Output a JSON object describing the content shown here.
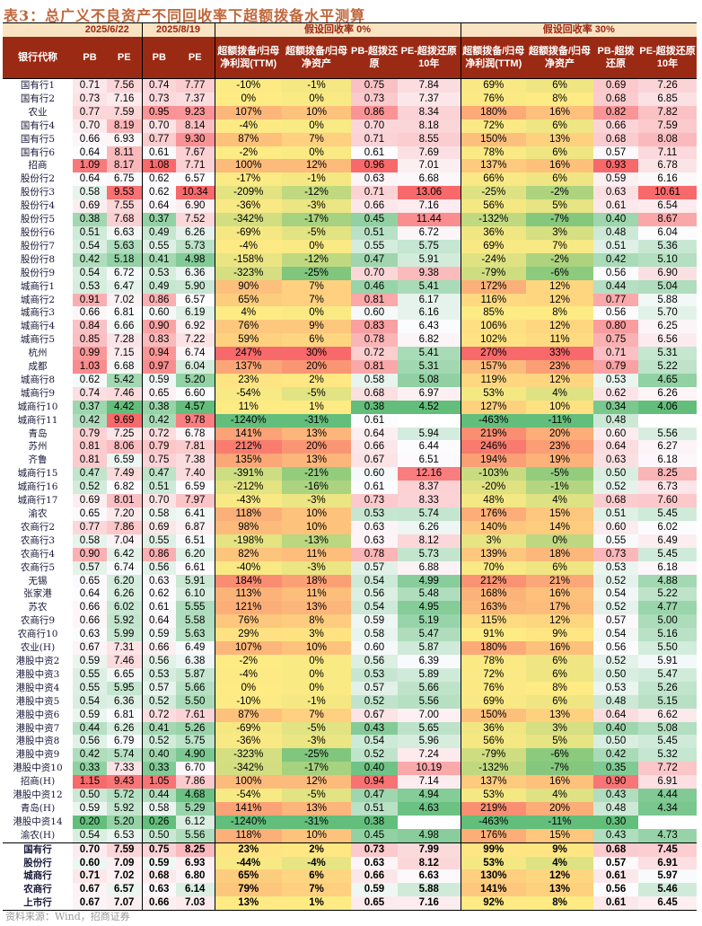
{
  "title": "表3：总广义不良资产不同回收率下超额拨备水平测算",
  "header_groups": [
    "",
    "2025/6/22",
    "2025/8/19",
    "假设回收率 0%",
    "假设回收率 30%"
  ],
  "columns": [
    "银行代称",
    "PB",
    "PE",
    "PB",
    "PE",
    "超额拨备/归母净利润(TTM)",
    "超额拨备/归母净资产",
    "PB-超拨还原",
    "PE-超拨还原10年",
    "超额拨备/归母净利润(TTM)",
    "超额拨备/归母净资产",
    "PB-超拨还原",
    "PE-超拨还原10年"
  ],
  "scale_colors": {
    "low": "#63BE7B",
    "mid_value": "#FCFCFF",
    "mid_pct": "#FFEB84",
    "high": "#F8696B"
  },
  "rows": [
    [
      "国有行1",
      "0.71",
      "7.56",
      "0.74",
      "7.77",
      "-10%",
      "-1%",
      "0.75",
      "7.84",
      "69%",
      "6%",
      "0.69",
      "7.26"
    ],
    [
      "国有行2",
      "0.73",
      "7.16",
      "0.73",
      "7.37",
      "0%",
      "0%",
      "0.73",
      "7.37",
      "76%",
      "8%",
      "0.68",
      "6.85"
    ],
    [
      "农业",
      "0.77",
      "7.59",
      "0.95",
      "9.23",
      "107%",
      "10%",
      "0.86",
      "8.34",
      "180%",
      "16%",
      "0.82",
      "7.82"
    ],
    [
      "国有行4",
      "0.70",
      "8.19",
      "0.70",
      "8.14",
      "-4%",
      "0%",
      "0.70",
      "8.18",
      "72%",
      "6%",
      "0.66",
      "7.59"
    ],
    [
      "国有行5",
      "0.66",
      "6.93",
      "0.77",
      "9.30",
      "87%",
      "7%",
      "0.71",
      "8.55",
      "150%",
      "13%",
      "0.68",
      "8.08"
    ],
    [
      "国有行6",
      "0.64",
      "8.11",
      "0.61",
      "7.67",
      "-2%",
      "0%",
      "0.61",
      "7.69",
      "78%",
      "6%",
      "0.57",
      "7.11"
    ],
    [
      "招商",
      "1.09",
      "8.17",
      "1.08",
      "7.71",
      "100%",
      "12%",
      "0.96",
      "7.01",
      "137%",
      "16%",
      "0.93",
      "6.78"
    ],
    [
      "股份行2",
      "0.64",
      "6.75",
      "0.62",
      "6.57",
      "-17%",
      "-1%",
      "0.63",
      "6.68",
      "66%",
      "6%",
      "0.59",
      "6.16"
    ],
    [
      "股份行3",
      "0.58",
      "9.53",
      "0.62",
      "10.34",
      "-209%",
      "-12%",
      "0.71",
      "13.06",
      "-25%",
      "-2%",
      "0.63",
      "10.61"
    ],
    [
      "股份行4",
      "0.69",
      "7.55",
      "0.64",
      "6.90",
      "-36%",
      "-3%",
      "0.66",
      "7.16",
      "56%",
      "5%",
      "0.61",
      "6.54"
    ],
    [
      "股份行5",
      "0.38",
      "7.68",
      "0.37",
      "7.52",
      "-342%",
      "-17%",
      "0.45",
      "11.44",
      "-132%",
      "-7%",
      "0.40",
      "8.67"
    ],
    [
      "股份行6",
      "0.51",
      "6.63",
      "0.49",
      "6.26",
      "-69%",
      "-5%",
      "0.51",
      "6.72",
      "36%",
      "3%",
      "0.48",
      "6.04"
    ],
    [
      "股份行7",
      "0.54",
      "5.63",
      "0.55",
      "5.73",
      "-4%",
      "0%",
      "0.55",
      "5.75",
      "69%",
      "7%",
      "0.51",
      "5.36"
    ],
    [
      "股份行8",
      "0.42",
      "5.18",
      "0.41",
      "4.98",
      "-158%",
      "-12%",
      "0.47",
      "5.91",
      "-24%",
      "-2%",
      "0.42",
      "5.10"
    ],
    [
      "股份行9",
      "0.54",
      "6.72",
      "0.53",
      "6.36",
      "-323%",
      "-25%",
      "0.70",
      "9.38",
      "-79%",
      "-6%",
      "0.56",
      "6.90"
    ],
    [
      "城商行1",
      "0.53",
      "6.47",
      "0.49",
      "5.90",
      "90%",
      "7%",
      "0.46",
      "5.41",
      "172%",
      "12%",
      "0.44",
      "5.04"
    ],
    [
      "城商行2",
      "0.91",
      "7.02",
      "0.86",
      "6.57",
      "65%",
      "7%",
      "0.81",
      "6.17",
      "116%",
      "12%",
      "0.77",
      "5.88"
    ],
    [
      "城商行3",
      "0.66",
      "6.81",
      "0.60",
      "6.19",
      "4%",
      "0%",
      "0.60",
      "6.16",
      "85%",
      "8%",
      "0.56",
      "5.70"
    ],
    [
      "城商行4",
      "0.84",
      "6.66",
      "0.90",
      "6.92",
      "76%",
      "9%",
      "0.83",
      "6.43",
      "106%",
      "12%",
      "0.80",
      "6.25"
    ],
    [
      "城商行5",
      "0.85",
      "7.28",
      "0.83",
      "7.22",
      "59%",
      "6%",
      "0.78",
      "6.82",
      "102%",
      "11%",
      "0.75",
      "6.56"
    ],
    [
      "杭州",
      "0.99",
      "7.15",
      "0.94",
      "6.74",
      "247%",
      "30%",
      "0.72",
      "5.41",
      "270%",
      "33%",
      "0.71",
      "5.31"
    ],
    [
      "成都",
      "1.03",
      "6.68",
      "0.97",
      "6.04",
      "137%",
      "20%",
      "0.81",
      "5.31",
      "157%",
      "23%",
      "0.79",
      "5.22"
    ],
    [
      "城商行8",
      "0.62",
      "5.42",
      "0.59",
      "5.20",
      "23%",
      "2%",
      "0.58",
      "5.08",
      "119%",
      "12%",
      "0.53",
      "4.65"
    ],
    [
      "城商行9",
      "0.74",
      "7.46",
      "0.65",
      "6.60",
      "-54%",
      "-5%",
      "0.68",
      "6.97",
      "53%",
      "4%",
      "0.62",
      "6.26"
    ],
    [
      "城商行10",
      "0.37",
      "4.42",
      "0.38",
      "4.57",
      "11%",
      "1%",
      "0.38",
      "4.52",
      "127%",
      "10%",
      "0.34",
      "4.06"
    ],
    [
      "城商行11",
      "0.42",
      "9.69",
      "0.42",
      "9.78",
      "-1240%",
      "-31%",
      "0.61",
      "",
      "-463%",
      "-11%",
      "0.48",
      ""
    ],
    [
      "青岛",
      "0.79",
      "7.25",
      "0.72",
      "6.78",
      "141%",
      "13%",
      "0.64",
      "5.94",
      "219%",
      "20%",
      "0.60",
      "5.56"
    ],
    [
      "苏州",
      "0.81",
      "8.06",
      "0.79",
      "7.81",
      "212%",
      "20%",
      "0.66",
      "6.44",
      "246%",
      "23%",
      "0.64",
      "6.27"
    ],
    [
      "齐鲁",
      "0.81",
      "6.59",
      "0.75",
      "7.38",
      "135%",
      "13%",
      "0.67",
      "6.51",
      "194%",
      "19%",
      "0.63",
      "6.18"
    ],
    [
      "城商行15",
      "0.47",
      "7.49",
      "0.47",
      "7.40",
      "-391%",
      "-21%",
      "0.60",
      "12.16",
      "-103%",
      "-5%",
      "0.50",
      "8.25"
    ],
    [
      "城商行16",
      "0.52",
      "6.82",
      "0.51",
      "6.59",
      "-212%",
      "-16%",
      "0.61",
      "8.37",
      "-20%",
      "-1%",
      "0.52",
      "6.73"
    ],
    [
      "城商行17",
      "0.69",
      "8.01",
      "0.70",
      "7.97",
      "-43%",
      "-3%",
      "0.73",
      "8.33",
      "48%",
      "4%",
      "0.68",
      "7.60"
    ],
    [
      "渝农",
      "0.65",
      "7.20",
      "0.58",
      "6.41",
      "118%",
      "10%",
      "0.53",
      "5.74",
      "176%",
      "15%",
      "0.51",
      "5.45"
    ],
    [
      "农商行2",
      "0.77",
      "7.86",
      "0.69",
      "6.87",
      "98%",
      "10%",
      "0.63",
      "6.26",
      "140%",
      "14%",
      "0.60",
      "6.02"
    ],
    [
      "农商行3",
      "0.58",
      "7.04",
      "0.55",
      "6.51",
      "-198%",
      "-13%",
      "0.63",
      "8.12",
      "3%",
      "0%",
      "0.55",
      "6.49"
    ],
    [
      "农商行4",
      "0.90",
      "6.42",
      "0.86",
      "6.20",
      "82%",
      "11%",
      "0.78",
      "5.73",
      "139%",
      "18%",
      "0.73",
      "5.45"
    ],
    [
      "农商行5",
      "0.57",
      "6.74",
      "0.56",
      "6.61",
      "-40%",
      "-3%",
      "0.57",
      "6.88",
      "70%",
      "6%",
      "0.53",
      "6.18"
    ],
    [
      "无锡",
      "0.65",
      "6.20",
      "0.63",
      "5.91",
      "184%",
      "18%",
      "0.54",
      "4.99",
      "212%",
      "21%",
      "0.52",
      "4.88"
    ],
    [
      "张家港",
      "0.64",
      "6.26",
      "0.62",
      "6.10",
      "113%",
      "11%",
      "0.56",
      "5.48",
      "168%",
      "16%",
      "0.54",
      "5.22"
    ],
    [
      "苏农",
      "0.66",
      "6.02",
      "0.61",
      "5.55",
      "121%",
      "13%",
      "0.54",
      "4.95",
      "163%",
      "17%",
      "0.52",
      "4.77"
    ],
    [
      "农商行9",
      "0.66",
      "5.92",
      "0.64",
      "5.58",
      "76%",
      "8%",
      "0.59",
      "5.19",
      "115%",
      "12%",
      "0.57",
      "5.00"
    ],
    [
      "农商行10",
      "0.63",
      "5.99",
      "0.59",
      "5.63",
      "29%",
      "3%",
      "0.58",
      "5.47",
      "91%",
      "9%",
      "0.54",
      "5.16"
    ],
    [
      "农业(H)",
      "0.67",
      "7.31",
      "0.66",
      "6.49",
      "107%",
      "10%",
      "0.60",
      "5.87",
      "180%",
      "16%",
      "0.56",
      "5.50"
    ],
    [
      "港股中资2",
      "0.59",
      "7.46",
      "0.56",
      "6.38",
      "-2%",
      "0%",
      "0.56",
      "6.39",
      "78%",
      "6%",
      "0.52",
      "5.91"
    ],
    [
      "港股中资3",
      "0.55",
      "6.65",
      "0.53",
      "5.87",
      "-4%",
      "0%",
      "0.53",
      "5.89",
      "72%",
      "6%",
      "0.50",
      "5.47"
    ],
    [
      "港股中资4",
      "0.55",
      "5.95",
      "0.57",
      "5.66",
      "0%",
      "0%",
      "0.57",
      "5.66",
      "76%",
      "8%",
      "0.53",
      "5.26"
    ],
    [
      "港股中资5",
      "0.54",
      "6.36",
      "0.52",
      "5.50",
      "-10%",
      "-1%",
      "0.52",
      "5.56",
      "69%",
      "6%",
      "0.48",
      "5.15"
    ],
    [
      "港股中资6",
      "0.59",
      "6.81",
      "0.72",
      "7.61",
      "87%",
      "7%",
      "0.67",
      "7.00",
      "150%",
      "13%",
      "0.64",
      "6.62"
    ],
    [
      "港股中资7",
      "0.44",
      "6.26",
      "0.41",
      "5.26",
      "-69%",
      "-5%",
      "0.43",
      "5.65",
      "36%",
      "3%",
      "0.40",
      "5.08"
    ],
    [
      "港股中资8",
      "0.56",
      "6.79",
      "0.52",
      "5.75",
      "-36%",
      "-3%",
      "0.54",
      "5.96",
      "56%",
      "5%",
      "0.50",
      "5.45"
    ],
    [
      "港股中资9",
      "0.42",
      "5.74",
      "0.40",
      "4.90",
      "-323%",
      "-25%",
      "0.52",
      "7.24",
      "-79%",
      "-6%",
      "0.42",
      "5.32"
    ],
    [
      "港股中资10",
      "0.33",
      "7.33",
      "0.33",
      "6.70",
      "-342%",
      "-17%",
      "0.40",
      "10.19",
      "-132%",
      "-7%",
      "0.35",
      "7.72"
    ],
    [
      "招商(H)",
      "1.15",
      "9.43",
      "1.05",
      "7.86",
      "100%",
      "12%",
      "0.94",
      "7.14",
      "137%",
      "16%",
      "0.90",
      "6.91"
    ],
    [
      "港股中资12",
      "0.50",
      "5.72",
      "0.44",
      "4.68",
      "-54%",
      "-5%",
      "0.47",
      "4.94",
      "53%",
      "4%",
      "0.43",
      "4.44"
    ],
    [
      "青岛(H)",
      "0.59",
      "5.92",
      "0.58",
      "5.29",
      "141%",
      "13%",
      "0.51",
      "4.63",
      "219%",
      "20%",
      "0.48",
      "4.34"
    ],
    [
      "港股中资14",
      "0.20",
      "5.20",
      "0.26",
      "6.12",
      "-1240%",
      "-31%",
      "0.38",
      "",
      "-463%",
      "-11%",
      "0.30",
      ""
    ],
    [
      "渝农(H)",
      "0.54",
      "6.53",
      "0.50",
      "5.56",
      "118%",
      "10%",
      "0.45",
      "4.98",
      "176%",
      "15%",
      "0.43",
      "4.73"
    ]
  ],
  "summary_rows": [
    [
      "国有行",
      "0.70",
      "7.59",
      "0.75",
      "8.25",
      "23%",
      "2%",
      "0.73",
      "7.99",
      "99%",
      "9%",
      "0.68",
      "7.45"
    ],
    [
      "股份行",
      "0.60",
      "7.09",
      "0.59",
      "6.93",
      "-44%",
      "-4%",
      "0.63",
      "8.12",
      "53%",
      "4%",
      "0.57",
      "6.91"
    ],
    [
      "城商行",
      "0.71",
      "7.02",
      "0.68",
      "6.80",
      "65%",
      "6%",
      "0.66",
      "6.63",
      "130%",
      "12%",
      "0.61",
      "5.97"
    ],
    [
      "农商行",
      "0.67",
      "6.57",
      "0.63",
      "6.14",
      "79%",
      "7%",
      "0.59",
      "5.88",
      "141%",
      "13%",
      "0.56",
      "5.46"
    ],
    [
      "上市行",
      "0.67",
      "7.07",
      "0.66",
      "7.03",
      "13%",
      "1%",
      "0.65",
      "7.16",
      "92%",
      "8%",
      "0.61",
      "6.45"
    ]
  ],
  "source": "资料来源：Wind，招商证券"
}
